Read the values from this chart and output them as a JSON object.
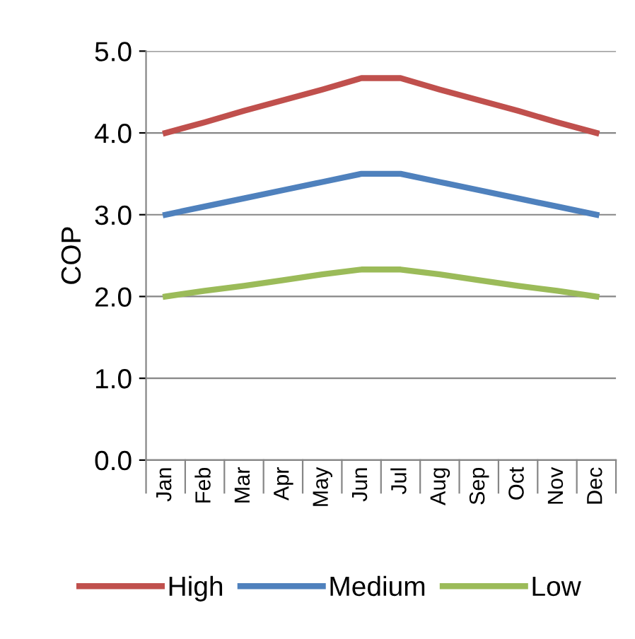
{
  "chart_data": {
    "type": "line",
    "ylabel": "COP",
    "categories": [
      "Jan",
      "Feb",
      "Mar",
      "Apr",
      "May",
      "Jun",
      "Jul",
      "Aug",
      "Sep",
      "Oct",
      "Nov",
      "Dec"
    ],
    "series": [
      {
        "name": "High",
        "color": "#c0504d",
        "values": [
          4.0,
          4.13,
          4.27,
          4.4,
          4.53,
          4.67,
          4.67,
          4.53,
          4.4,
          4.27,
          4.13,
          4.0
        ]
      },
      {
        "name": "Medium",
        "color": "#4f81bd",
        "values": [
          3.0,
          3.1,
          3.2,
          3.3,
          3.4,
          3.5,
          3.5,
          3.4,
          3.3,
          3.2,
          3.1,
          3.0
        ]
      },
      {
        "name": "Low",
        "color": "#9bbb59",
        "values": [
          2.0,
          2.07,
          2.13,
          2.2,
          2.27,
          2.33,
          2.33,
          2.27,
          2.2,
          2.13,
          2.07,
          2.0
        ]
      }
    ],
    "ylim": [
      0,
      5
    ],
    "yticks": [
      {
        "value": 0,
        "label": "0.0"
      },
      {
        "value": 1,
        "label": "1.0"
      },
      {
        "value": 2,
        "label": "2.0"
      },
      {
        "value": 3,
        "label": "3.0"
      },
      {
        "value": 4,
        "label": "4.0"
      },
      {
        "value": 5,
        "label": "5.0"
      }
    ],
    "grid": "y",
    "legend": "bottom",
    "marker": "none",
    "line_style": "solid"
  }
}
